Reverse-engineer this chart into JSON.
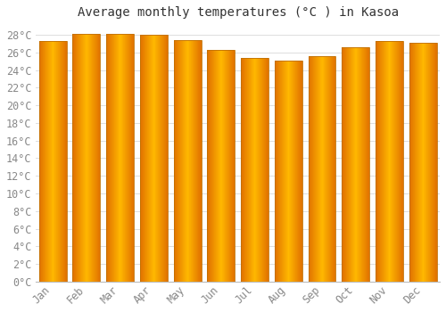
{
  "title": "Average monthly temperatures (°C ) in Kasoa",
  "months": [
    "Jan",
    "Feb",
    "Mar",
    "Apr",
    "May",
    "Jun",
    "Jul",
    "Aug",
    "Sep",
    "Oct",
    "Nov",
    "Dec"
  ],
  "values": [
    27.3,
    28.1,
    28.1,
    28.0,
    27.4,
    26.3,
    25.4,
    25.1,
    25.6,
    26.6,
    27.3,
    27.1
  ],
  "bar_color_center": "#FFB800",
  "bar_color_edge": "#F07800",
  "bar_edge_color": "#C07000",
  "background_color": "#FFFFFF",
  "plot_bg_color": "#FFFFFF",
  "grid_color": "#DDDDDD",
  "ylim": [
    0,
    29
  ],
  "ytick_step": 2,
  "title_fontsize": 10,
  "tick_fontsize": 8.5,
  "tick_color": "#888888",
  "title_color": "#333333",
  "font_family": "monospace"
}
